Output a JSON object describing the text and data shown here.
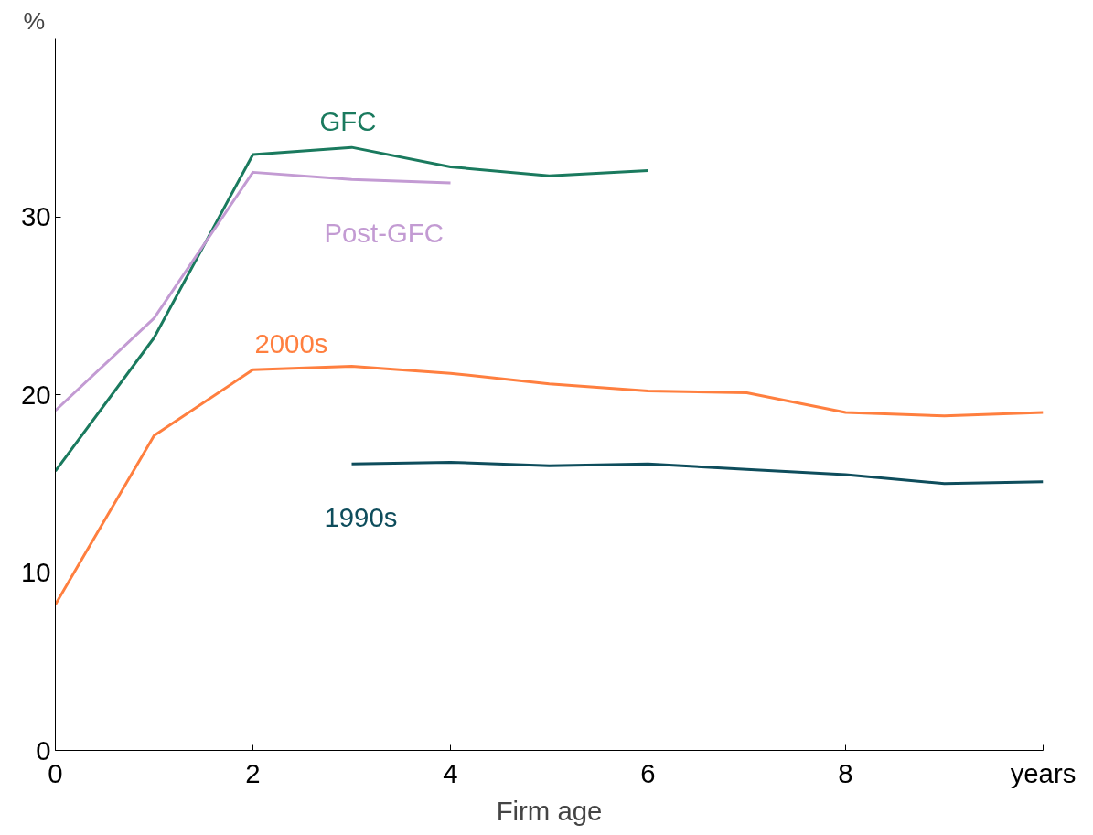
{
  "chart_data": {
    "type": "line",
    "xlabel": "Firm age",
    "ylabel": "%",
    "xlim": [
      0,
      10
    ],
    "xticks": [
      0,
      2,
      4,
      6,
      8,
      {
        "value": 10,
        "label": "years"
      }
    ],
    "ylim": [
      0,
      40
    ],
    "yticks": [
      0,
      10,
      20,
      30
    ],
    "grid": false,
    "legend": false,
    "series": [
      {
        "name": "GFC",
        "color": "#1a7a5e",
        "x": [
          0,
          1,
          2,
          3,
          4,
          5,
          6
        ],
        "values": [
          15.7,
          23.2,
          33.5,
          33.9,
          32.8,
          32.3,
          32.6
        ]
      },
      {
        "name": "Post-GFC",
        "color": "#c39bd3",
        "x": [
          0,
          1,
          2,
          3,
          4
        ],
        "values": [
          19.1,
          24.3,
          32.5,
          32.1,
          31.9
        ]
      },
      {
        "name": "2000s",
        "color": "#ff7f3f",
        "x": [
          0,
          1,
          2,
          3,
          4,
          5,
          6,
          7,
          8,
          9,
          10
        ],
        "values": [
          8.2,
          17.7,
          21.4,
          21.6,
          21.2,
          20.6,
          20.2,
          20.1,
          19.0,
          18.8,
          19.0
        ]
      },
      {
        "name": "1990s",
        "color": "#0e4d5c",
        "x": [
          3,
          4,
          5,
          6,
          7,
          8,
          9,
          10
        ],
        "values": [
          16.1,
          16.2,
          16.0,
          16.1,
          15.8,
          15.5,
          15.0,
          15.1
        ]
      }
    ]
  }
}
